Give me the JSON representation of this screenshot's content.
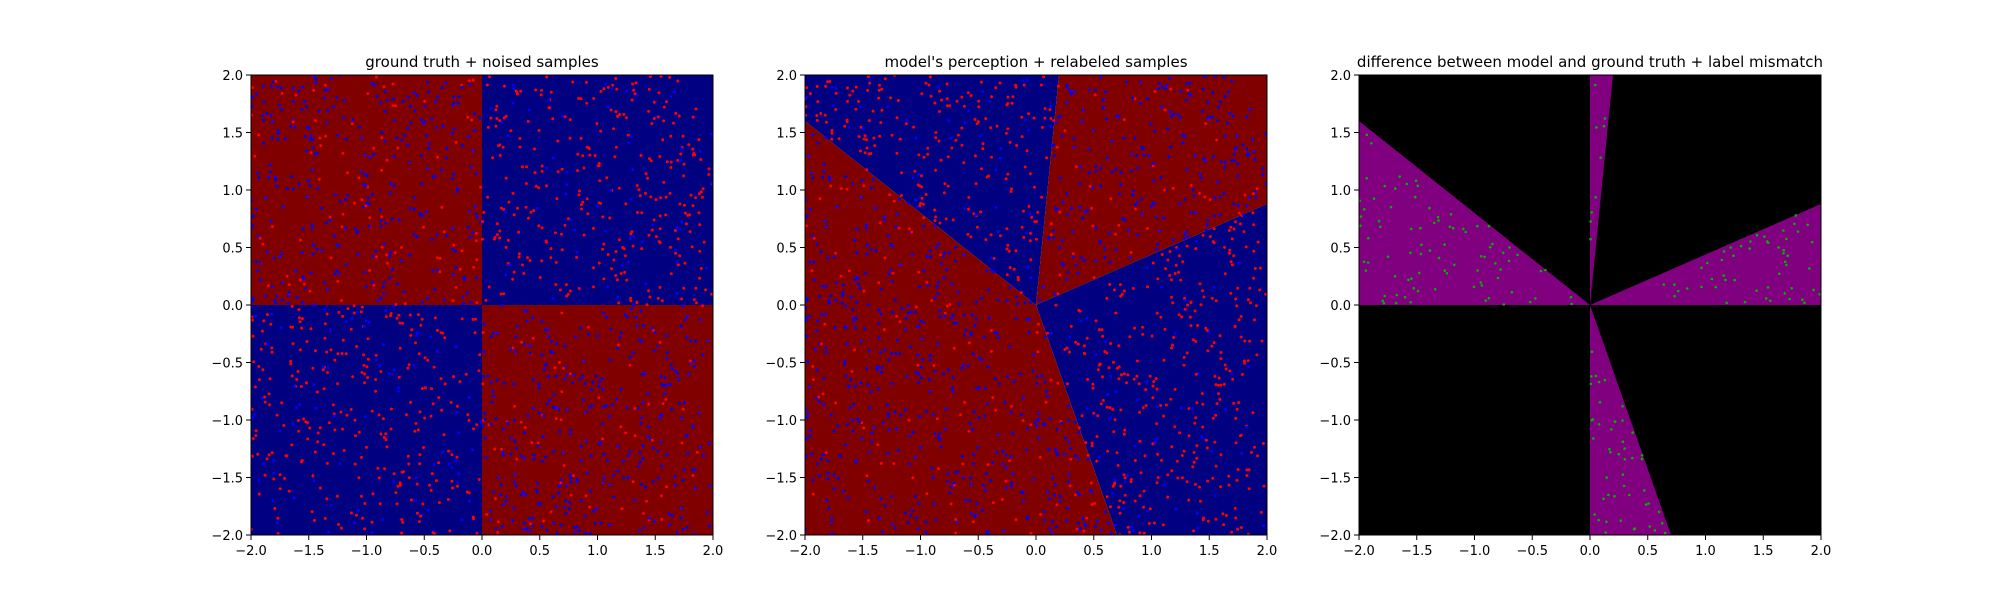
{
  "chart_data": [
    {
      "type": "scatter",
      "title": "ground truth + noised samples",
      "xlim": [
        -2.0,
        2.0
      ],
      "ylim": [
        -2.0,
        2.0
      ],
      "x_ticks": [
        "−2.0",
        "−1.5",
        "−1.0",
        "−0.5",
        "0.0",
        "0.5",
        "1.0",
        "1.5",
        "2.0"
      ],
      "y_ticks": [
        "−2.0",
        "−1.5",
        "−1.0",
        "−0.5",
        "0.0",
        "0.5",
        "1.0",
        "1.5",
        "2.0"
      ],
      "background": "quadrant map: red where x·y < 0, blue where x·y > 0",
      "sample_points": "approx. 1500 uniformly scattered samples in [-2,2]²; most blue points lie in the red regions and most red points in the blue regions",
      "colors": {
        "red_region": "#800000",
        "blue_region": "#000080",
        "red_point": "#ff0000",
        "blue_point": "#0000ff"
      }
    },
    {
      "type": "scatter",
      "title": "model's perception + relabeled samples",
      "xlim": [
        -2.0,
        2.0
      ],
      "ylim": [
        -2.0,
        2.0
      ],
      "x_ticks": [
        "−2.0",
        "−1.5",
        "−1.0",
        "−0.5",
        "0.0",
        "0.5",
        "1.0",
        "1.5",
        "2.0"
      ],
      "y_ticks": [
        "−2.0",
        "−1.5",
        "−1.0",
        "−0.5",
        "0.0",
        "0.5",
        "1.0",
        "1.5",
        "2.0"
      ],
      "background": "four wedges meeting at the origin, boundaries through (0.2, 2.0), (-2.0, 1.6), (0.7, -2.0), (2.0, 0.88); red in the upper-right and left wedges, blue in the top and right wedges",
      "sample_points": "same samples relabeled to the model's wedges",
      "colors": {
        "red_region": "#800000",
        "blue_region": "#000080",
        "red_point": "#ff0000",
        "blue_point": "#0000ff"
      }
    },
    {
      "type": "scatter",
      "title": "difference between model and ground truth + label mismatch",
      "xlim": [
        -2.0,
        2.0
      ],
      "ylim": [
        -2.0,
        2.0
      ],
      "x_ticks": [
        "−2.0",
        "−1.5",
        "−1.0",
        "−0.5",
        "0.0",
        "0.5",
        "1.0",
        "1.5",
        "2.0"
      ],
      "y_ticks": [
        "−2.0",
        "−1.5",
        "−1.0",
        "−0.5",
        "0.0",
        "0.5",
        "1.0",
        "1.5",
        "2.0"
      ],
      "background": "black where model agrees with ground truth, purple in the mismatch wedges",
      "sample_points": "approx. 700 green points marking label mismatches, located in the black regions",
      "colors": {
        "agree_region": "#000000",
        "mismatch_region": "#800080",
        "mismatch_point": "#00b000"
      }
    }
  ]
}
